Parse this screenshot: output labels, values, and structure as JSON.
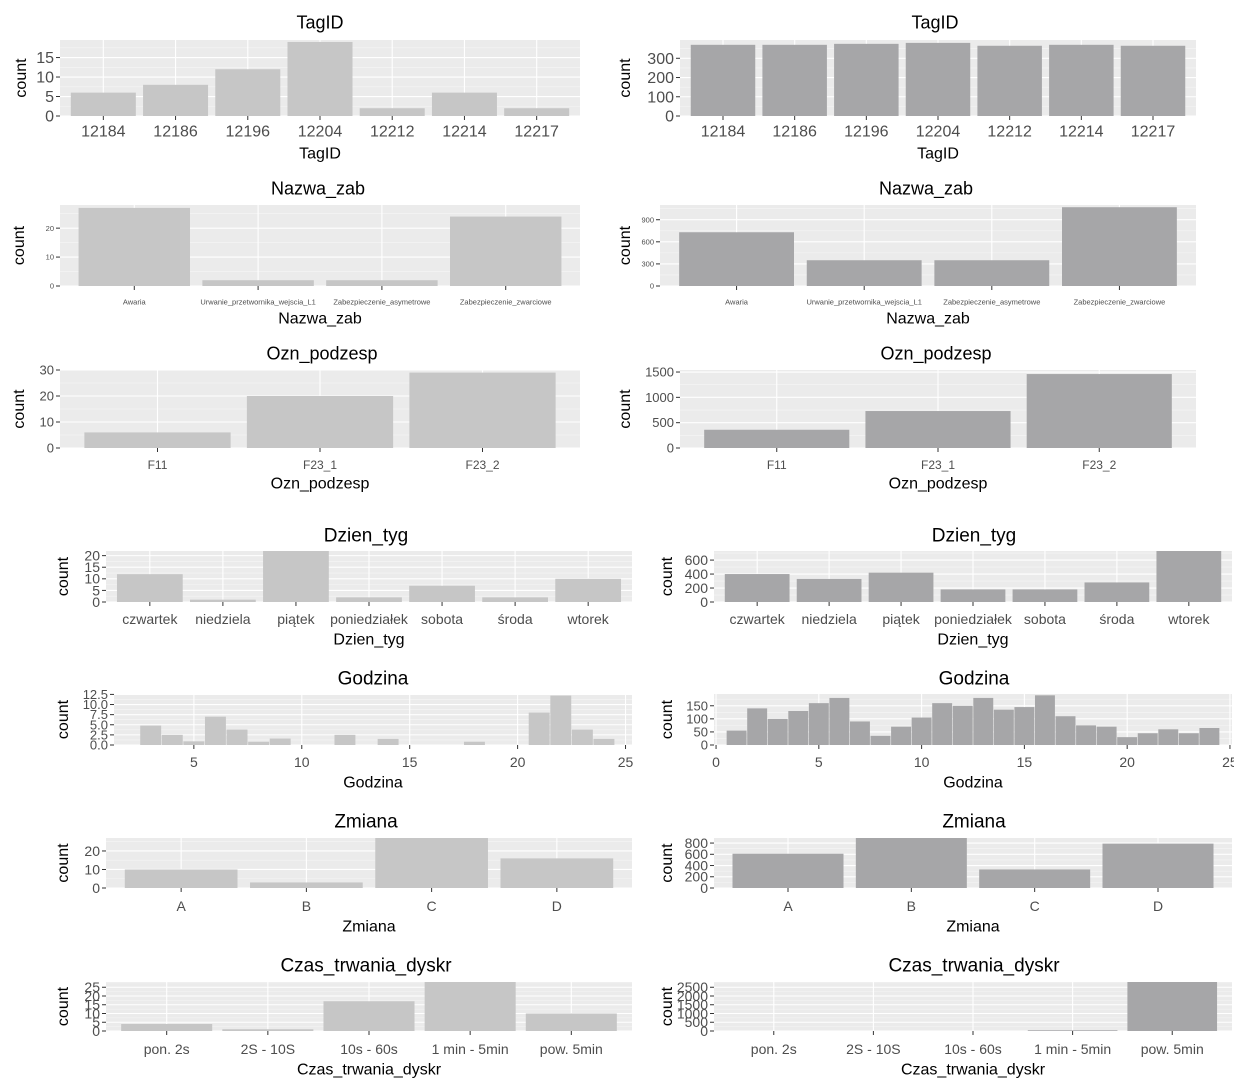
{
  "chart_data": [
    {
      "type": "bar",
      "title": "TagID",
      "xlabel": "TagID",
      "ylabel": "count",
      "categories": [
        "12184",
        "12186",
        "12196",
        "12204",
        "12212",
        "12214",
        "12217"
      ],
      "values": [
        6,
        8,
        12,
        19,
        2,
        6,
        2
      ],
      "ylim": [
        0,
        19.5
      ],
      "yticks": [
        0,
        5,
        10,
        15
      ],
      "color": "#c6c6c6"
    },
    {
      "type": "bar",
      "title": "TagID",
      "xlabel": "TagID",
      "ylabel": "count",
      "categories": [
        "12184",
        "12186",
        "12196",
        "12204",
        "12212",
        "12214",
        "12217"
      ],
      "values": [
        370,
        370,
        375,
        380,
        365,
        370,
        365
      ],
      "ylim": [
        0,
        395
      ],
      "yticks": [
        0,
        100,
        200,
        300
      ],
      "color": "#a6a6a8"
    },
    {
      "type": "bar",
      "title": "Nazwa_zab",
      "xlabel": "Nazwa_zab",
      "ylabel": "count",
      "categories": [
        "Awaria",
        "Urwanie_przetwornika_wejscia_L1",
        "Zabezpieczenie_asymetrowe",
        "Zabezpieczenie_zwarciowe"
      ],
      "values": [
        27,
        2,
        2,
        24
      ],
      "ylim": [
        0,
        28
      ],
      "yticks": [
        0,
        10,
        20
      ],
      "color": "#c6c6c6"
    },
    {
      "type": "bar",
      "title": "Nazwa_zab",
      "xlabel": "Nazwa_zab",
      "ylabel": "count",
      "categories": [
        "Awaria",
        "Urwanie_przetwornika_wejscia_L1",
        "Zabezpieczenie_asymetrowe",
        "Zabezpieczenie_zwarciowe"
      ],
      "values": [
        730,
        350,
        350,
        1070
      ],
      "ylim": [
        0,
        1100
      ],
      "yticks": [
        0,
        300,
        600,
        900
      ],
      "color": "#a6a6a8"
    },
    {
      "type": "bar",
      "title": "Ozn_podzesp",
      "xlabel": "Ozn_podzesp",
      "ylabel": "count",
      "categories": [
        "F11",
        "F23_1",
        "F23_2"
      ],
      "values": [
        6,
        20,
        29
      ],
      "ylim": [
        0,
        30
      ],
      "yticks": [
        0,
        10,
        20,
        30
      ],
      "color": "#c6c6c6"
    },
    {
      "type": "bar",
      "title": "Ozn_podzesp",
      "xlabel": "Ozn_podzesp",
      "ylabel": "count",
      "categories": [
        "F11",
        "F23_1",
        "F23_2"
      ],
      "values": [
        360,
        730,
        1460
      ],
      "ylim": [
        0,
        1540
      ],
      "yticks": [
        0,
        500,
        1000,
        1500
      ],
      "color": "#a6a6a8"
    },
    {
      "type": "bar",
      "title": "Dzien_tyg",
      "xlabel": "Dzien_tyg",
      "ylabel": "count",
      "categories": [
        "czwartek",
        "niedziela",
        "piątek",
        "poniedziałek",
        "sobota",
        "środa",
        "wtorek"
      ],
      "values": [
        12,
        1,
        22,
        2,
        7,
        2,
        10
      ],
      "ylim": [
        0,
        22
      ],
      "yticks": [
        0,
        5,
        10,
        15,
        20
      ],
      "color": "#c6c6c6"
    },
    {
      "type": "bar",
      "title": "Dzien_tyg",
      "xlabel": "Dzien_tyg",
      "ylabel": "count",
      "categories": [
        "czwartek",
        "niedziela",
        "piątek",
        "poniedziałek",
        "sobota",
        "środa",
        "wtorek"
      ],
      "values": [
        400,
        330,
        420,
        180,
        180,
        280,
        730
      ],
      "ylim": [
        0,
        730
      ],
      "yticks": [
        0,
        200,
        400,
        600
      ],
      "color": "#a6a6a8"
    },
    {
      "type": "histogram",
      "title": "Godzina",
      "xlabel": "Godzina",
      "ylabel": "count",
      "x": [
        3,
        4,
        5,
        6,
        7,
        8,
        9,
        10,
        11,
        12,
        13,
        14,
        15,
        16,
        17,
        18,
        19,
        20,
        21,
        22,
        23,
        24
      ],
      "values": [
        4.8,
        2.5,
        0.9,
        7.0,
        3.8,
        0.8,
        1.6,
        0,
        0,
        2.5,
        0,
        1.5,
        0,
        0,
        0,
        0.8,
        0,
        0,
        8.0,
        12.2,
        3.8,
        1.5
      ],
      "xlim": [
        1.3,
        25.3
      ],
      "xticks": [
        5,
        10,
        15,
        20,
        25
      ],
      "ylim": [
        0,
        12.6
      ],
      "yticks": [
        0,
        2.5,
        5,
        7.5,
        10,
        12.5
      ],
      "ytick_labels": [
        "0.0",
        "2.5",
        "5.0",
        "7.5",
        "10.0",
        "12.5"
      ],
      "color": "#c6c6c6"
    },
    {
      "type": "histogram",
      "title": "Godzina",
      "xlabel": "Godzina",
      "ylabel": "count",
      "x": [
        1,
        2,
        3,
        4,
        5,
        6,
        7,
        8,
        9,
        10,
        11,
        12,
        13,
        14,
        15,
        16,
        17,
        18,
        19,
        20,
        21,
        22,
        23,
        24
      ],
      "values": [
        55,
        140,
        100,
        130,
        160,
        180,
        90,
        35,
        70,
        105,
        160,
        150,
        180,
        135,
        145,
        190,
        110,
        75,
        70,
        30,
        45,
        60,
        45,
        65
      ],
      "xlim": [
        -0.1,
        25.1
      ],
      "xticks": [
        0,
        5,
        10,
        15,
        20,
        25
      ],
      "ylim": [
        0,
        195
      ],
      "yticks": [
        0,
        50,
        100,
        150
      ],
      "color": "#a6a6a8"
    },
    {
      "type": "bar",
      "title": "Zmiana",
      "xlabel": "Zmiana",
      "ylabel": "count",
      "categories": [
        "A",
        "B",
        "C",
        "D"
      ],
      "values": [
        10,
        3,
        27,
        16
      ],
      "ylim": [
        0,
        27
      ],
      "yticks": [
        0,
        10,
        20
      ],
      "color": "#c6c6c6"
    },
    {
      "type": "bar",
      "title": "Zmiana",
      "xlabel": "Zmiana",
      "ylabel": "count",
      "categories": [
        "A",
        "B",
        "C",
        "D"
      ],
      "values": [
        610,
        890,
        330,
        790
      ],
      "ylim": [
        0,
        890
      ],
      "yticks": [
        0,
        200,
        400,
        600,
        800
      ],
      "color": "#a6a6a8"
    },
    {
      "type": "bar",
      "title": "Czas_trwania_dyskr",
      "xlabel": "Czas_trwania_dyskr",
      "ylabel": "count",
      "categories": [
        "pon. 2s",
        "2S - 10S",
        "10s - 60s",
        "1 min - 5min",
        "pow. 5min"
      ],
      "values": [
        4,
        1,
        17,
        28,
        10
      ],
      "ylim": [
        0,
        28
      ],
      "yticks": [
        0,
        5,
        10,
        15,
        20,
        25
      ],
      "color": "#c6c6c6"
    },
    {
      "type": "bar",
      "title": "Czas_trwania_dyskr",
      "xlabel": "Czas_trwania_dyskr",
      "ylabel": "count",
      "categories": [
        "pon. 2s",
        "2S - 10S",
        "10s - 60s",
        "1 min - 5min",
        "pow. 5min"
      ],
      "values": [
        0,
        0,
        0,
        40,
        2800
      ],
      "ylim": [
        0,
        2800
      ],
      "yticks": [
        0,
        500,
        1000,
        1500,
        2000,
        2500
      ],
      "color": "#a6a6a8"
    }
  ]
}
